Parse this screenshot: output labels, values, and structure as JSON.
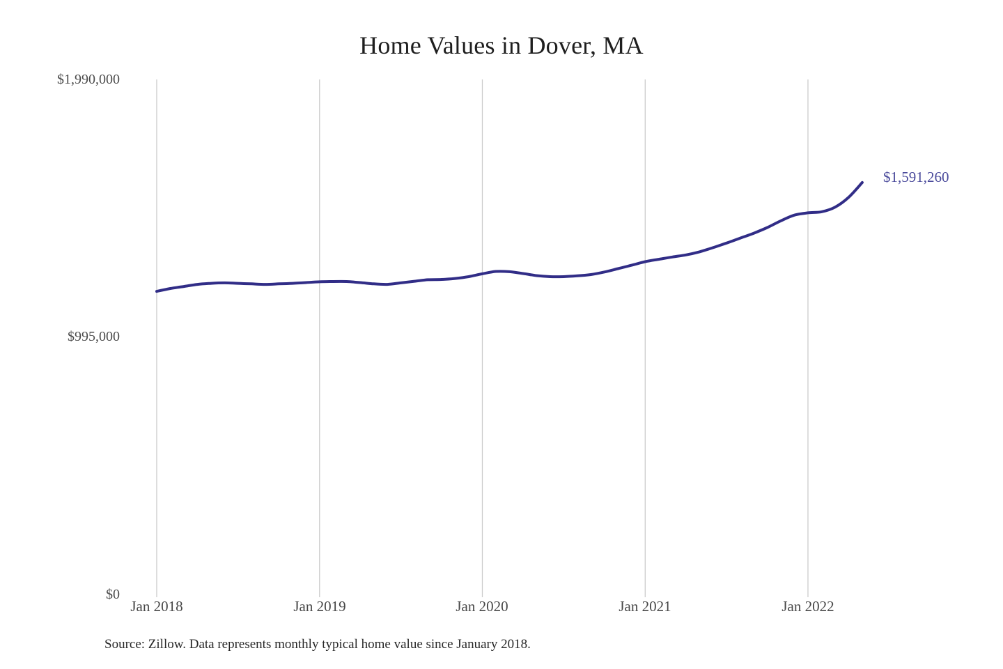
{
  "title": "Home Values in Dover, MA",
  "source_note": "Source: Zillow. Data represents monthly typical home value since January 2018.",
  "end_value_label": "$1,591,260",
  "colors": {
    "background": "#ffffff",
    "line": "#312d87",
    "grid": "#cbcbcb",
    "axis_text": "#4c4c4c",
    "title_text": "#1e1e1e",
    "end_label_text": "#4a4a9b",
    "source_text": "#272727"
  },
  "chart_data": {
    "type": "line",
    "title": "Home Values in Dover, MA",
    "xlabel": "",
    "ylabel": "",
    "ylim": [
      0,
      1990000
    ],
    "grid": "vertical-gridlines-only",
    "legend": "none",
    "line_color": "#312d87",
    "grid_color": "#cbcbcb",
    "last_value_label": "$1,591,260",
    "y_tick_labels": [
      "$1,990,000",
      "$995,000",
      "$0"
    ],
    "y_tick_values": [
      1990000,
      995000,
      0
    ],
    "x_tick_labels": [
      "Jan 2018",
      "Jan 2019",
      "Jan 2020",
      "Jan 2021",
      "Jan 2022"
    ],
    "x_tick_positions": [
      0,
      12,
      24,
      36,
      48
    ],
    "x": [
      "2018-01",
      "2018-02",
      "2018-03",
      "2018-04",
      "2018-05",
      "2018-06",
      "2018-07",
      "2018-08",
      "2018-09",
      "2018-10",
      "2018-11",
      "2018-12",
      "2019-01",
      "2019-02",
      "2019-03",
      "2019-04",
      "2019-05",
      "2019-06",
      "2019-07",
      "2019-08",
      "2019-09",
      "2019-10",
      "2019-11",
      "2019-12",
      "2020-01",
      "2020-02",
      "2020-03",
      "2020-04",
      "2020-05",
      "2020-06",
      "2020-07",
      "2020-08",
      "2020-09",
      "2020-10",
      "2020-11",
      "2020-12",
      "2021-01",
      "2021-02",
      "2021-03",
      "2021-04",
      "2021-05",
      "2021-06",
      "2021-07",
      "2021-08",
      "2021-09",
      "2021-10",
      "2021-11",
      "2021-12",
      "2022-01",
      "2022-02",
      "2022-03",
      "2022-04",
      "2022-05"
    ],
    "values": [
      1170000,
      1181000,
      1189000,
      1197000,
      1201000,
      1203000,
      1201000,
      1199000,
      1197000,
      1199000,
      1201000,
      1204000,
      1207000,
      1208000,
      1208000,
      1204000,
      1199000,
      1197000,
      1203000,
      1209000,
      1215000,
      1216000,
      1220000,
      1227000,
      1238000,
      1247000,
      1246000,
      1239000,
      1231000,
      1227000,
      1227000,
      1230000,
      1235000,
      1245000,
      1258000,
      1271000,
      1285000,
      1294000,
      1303000,
      1311000,
      1323000,
      1339000,
      1357000,
      1376000,
      1395000,
      1417000,
      1443000,
      1465000,
      1474000,
      1478000,
      1496000,
      1534000,
      1591260
    ]
  }
}
